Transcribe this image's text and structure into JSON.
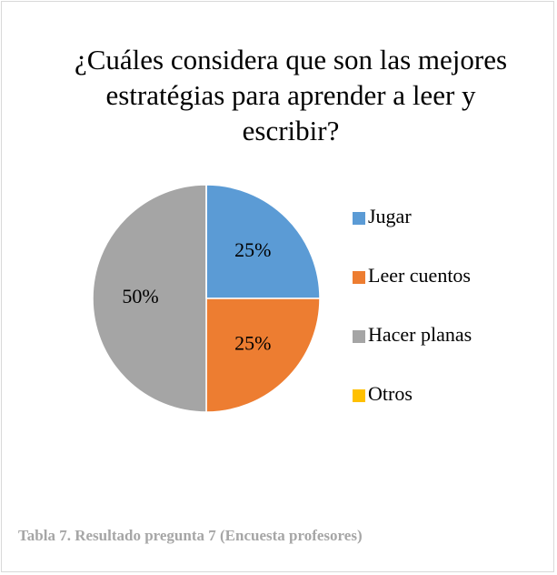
{
  "chart_data": {
    "type": "pie",
    "title": "¿Cuáles considera que son las mejores estratégias para aprender a leer y escribir?",
    "categories": [
      "Jugar",
      "Leer cuentos",
      "Hacer planas",
      "Otros"
    ],
    "values": [
      25,
      25,
      50,
      0
    ],
    "value_labels": [
      "25%",
      "25%",
      "50%",
      null
    ],
    "colors": [
      "#5b9bd5",
      "#ed7d31",
      "#a5a5a5",
      "#ffc000"
    ],
    "legend": "right"
  },
  "caption": "Tabla 7. Resultado pregunta 7 (Encuesta profesores)"
}
